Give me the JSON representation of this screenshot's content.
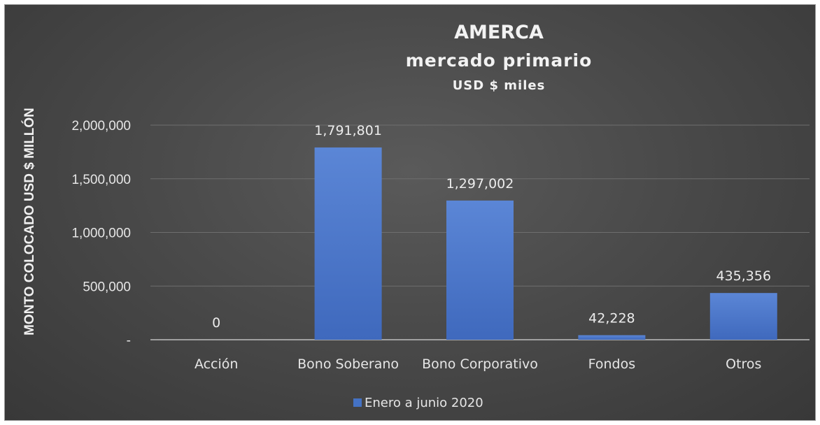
{
  "chart_data": {
    "type": "bar",
    "title": "AMERCA",
    "subtitle": "mercado primario",
    "subtitle2": "USD $ miles",
    "ylabel": "MONTO COLOCADO USD $ MILLÓN",
    "xlabel": "",
    "categories": [
      "Acción",
      "Bono Soberano",
      "Bono Corporativo",
      "Fondos",
      "Otros"
    ],
    "series": [
      {
        "name": "Enero a junio 2020",
        "values": [
          0,
          1791801,
          1297002,
          42228,
          435356
        ],
        "labels": [
          "0",
          "1,791,801",
          "1,297,002",
          "42,228",
          "435,356"
        ]
      }
    ],
    "ylim": [
      0,
      2000000
    ],
    "yticks": [
      0,
      500000,
      1000000,
      1500000,
      2000000
    ],
    "ytick_labels": [
      "-",
      "500,000",
      "1,000,000",
      "1,500,000",
      "2,000,000"
    ],
    "grid": true,
    "legend_position": "bottom",
    "colors": {
      "bar": "#4472c4",
      "bar_light": "#5b86d6",
      "grid": "#6e6e6e",
      "axis": "#bdbdbd"
    }
  }
}
